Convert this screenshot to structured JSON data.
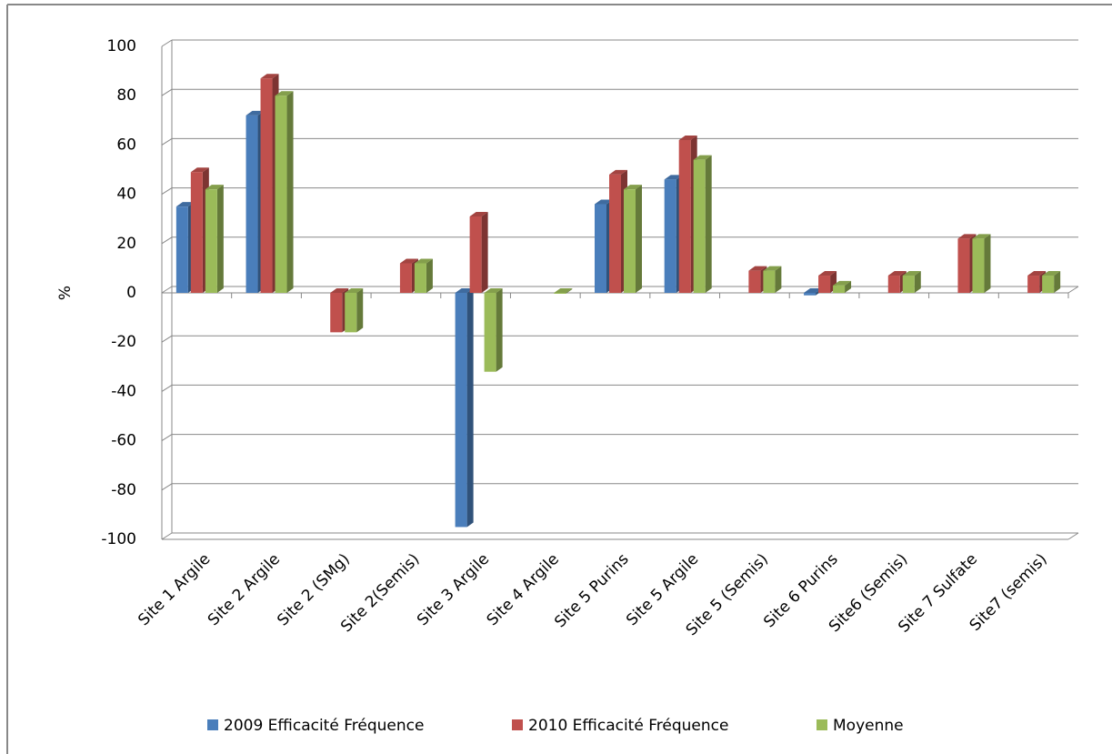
{
  "chart_data": {
    "type": "bar3d",
    "ylabel": "%",
    "categories": [
      "Site 1 Argile",
      "Site 2 Argile",
      "Site 2 (SMg)",
      "Site 2(Semis)",
      "Site 3 Argile",
      "Site 4 Argile",
      "Site 5 Purins",
      "Site 5 Argile",
      "Site 5 (Semis)",
      "Site 6 Purins",
      "Site6 (Semis)",
      "Site 7 Sulfate",
      "Site7 (semis)"
    ],
    "series": [
      {
        "name": "2009 Efficacité Fréquence",
        "color": "#4a7ebb",
        "values": [
          35,
          72,
          null,
          null,
          -95,
          null,
          36,
          46,
          null,
          -1,
          null,
          null,
          null
        ]
      },
      {
        "name": "2010 Efficacité Fréquence",
        "color": "#c0504d",
        "values": [
          49,
          87,
          -16,
          12,
          31,
          null,
          48,
          62,
          9,
          7,
          7,
          22,
          7
        ]
      },
      {
        "name": "Moyenne",
        "color": "#9bbb59",
        "values": [
          42,
          80,
          -16,
          12,
          -32,
          0,
          42,
          54,
          9,
          3,
          7,
          22,
          7
        ]
      }
    ],
    "ylim": [
      -100,
      100
    ],
    "yticks": [
      -100,
      -80,
      -60,
      -40,
      -20,
      0,
      20,
      40,
      60,
      80,
      100
    ],
    "grid": true
  }
}
